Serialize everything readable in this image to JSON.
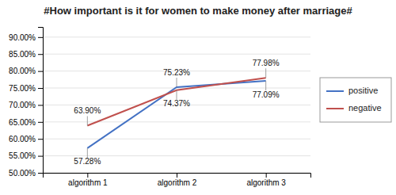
{
  "chart_data": {
    "type": "line",
    "title": "#How important is it for women to make money after marriage#",
    "categories": [
      "algorithm 1",
      "algorithm 2",
      "algorithm 3"
    ],
    "series": [
      {
        "name": "positive",
        "color": "#4472C4",
        "values": [
          57.28,
          75.23,
          77.09
        ],
        "value_labels": [
          "57.28%",
          "75.23%",
          "77.09%"
        ]
      },
      {
        "name": "negative",
        "color": "#C0504D",
        "values": [
          63.9,
          74.37,
          77.98
        ],
        "value_labels": [
          "63.90%",
          "74.37%",
          "77.98%"
        ]
      }
    ],
    "ylim": [
      50.0,
      93.0
    ],
    "yticks": [
      {
        "value": 50.0,
        "label": "50.00%"
      },
      {
        "value": 55.0,
        "label": "55.00%"
      },
      {
        "value": 60.0,
        "label": "60.00%"
      },
      {
        "value": 65.0,
        "label": "65.00%"
      },
      {
        "value": 70.0,
        "label": "70.00%"
      },
      {
        "value": 75.0,
        "label": "75.00%"
      },
      {
        "value": 80.0,
        "label": "80.00%"
      },
      {
        "value": 85.0,
        "label": "85.00%"
      },
      {
        "value": 90.0,
        "label": "90.00%"
      }
    ],
    "grid": true,
    "legend": "right",
    "data_labels": true
  }
}
